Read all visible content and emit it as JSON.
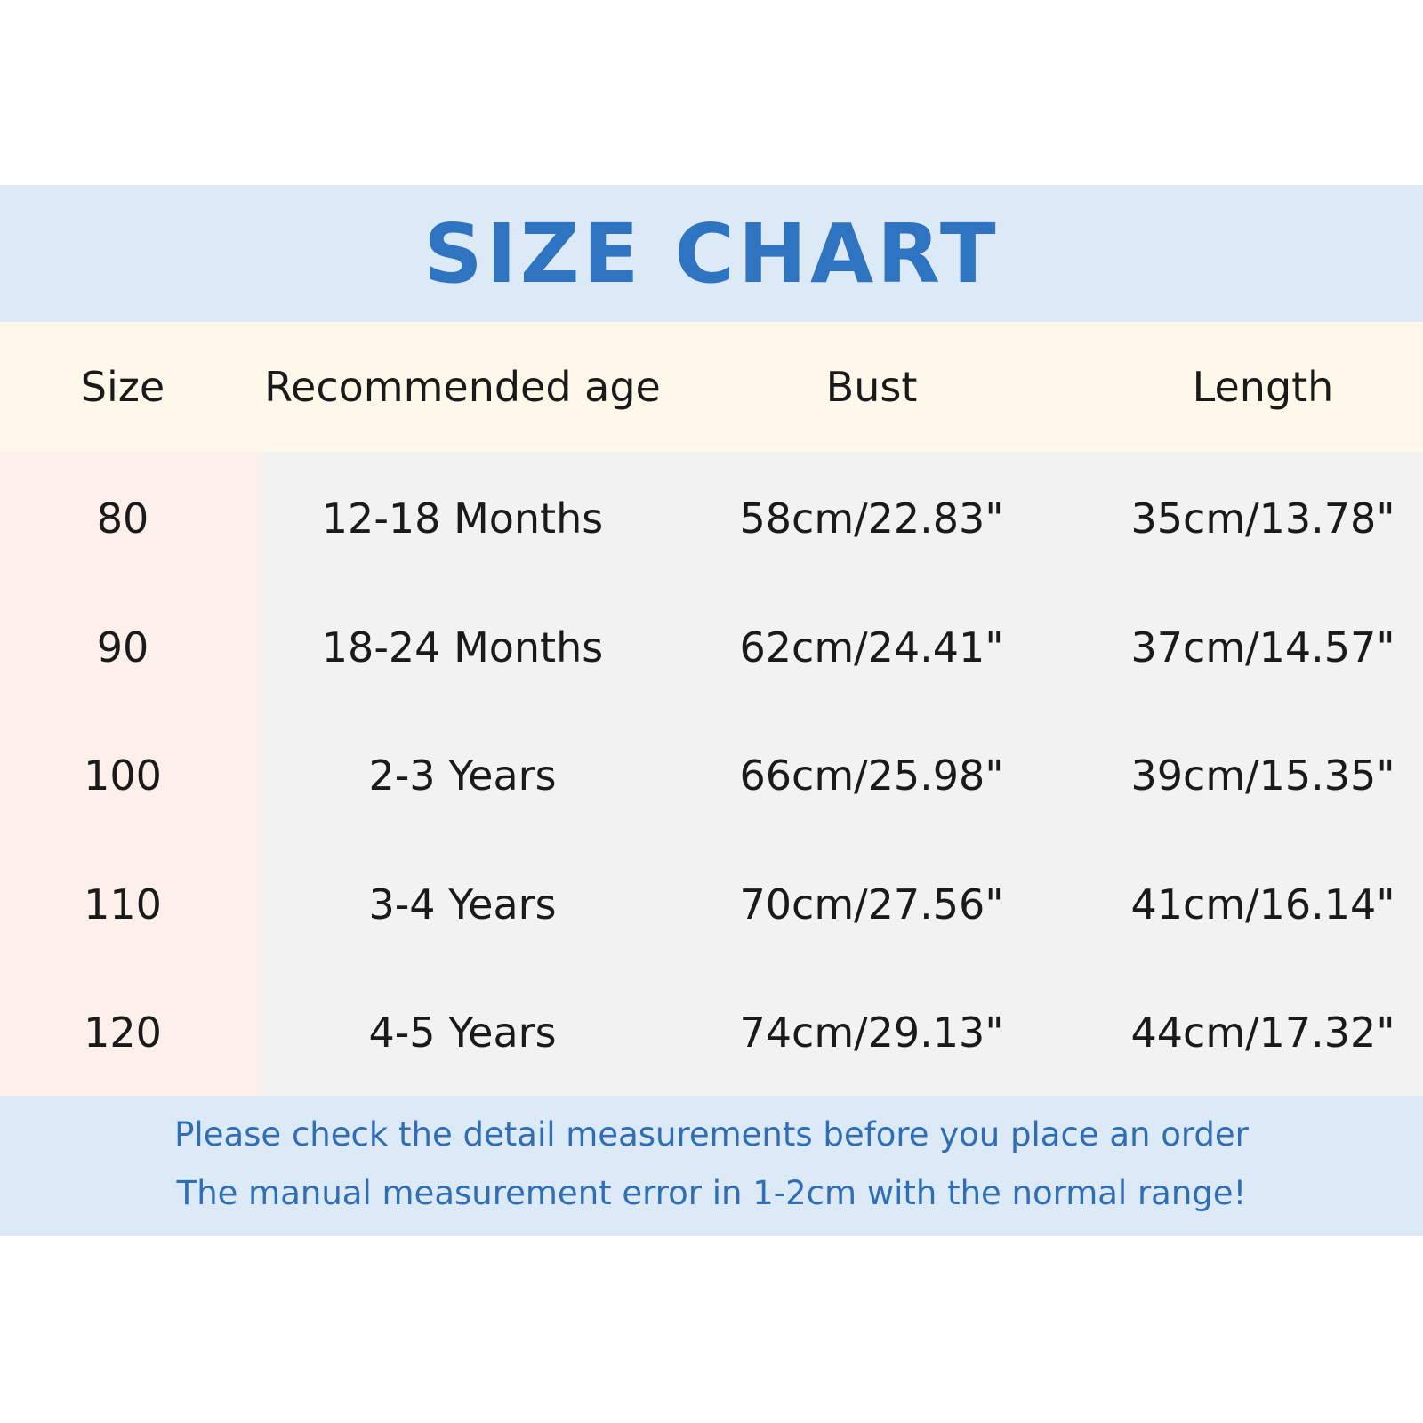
{
  "title": "SIZE CHART",
  "colors": {
    "title": "#2e74c0",
    "title_band": "#dce9f7",
    "header_band": "#fdf8ea",
    "size_column": "#fdf0ea",
    "body": "#f2f2f2",
    "footer_text": "#2f6db5"
  },
  "table": {
    "headers": [
      "Size",
      "Recommended age",
      "Bust",
      "Length"
    ],
    "rows": [
      [
        "80",
        "12-18 Months",
        "58cm/22.83\"",
        "35cm/13.78\""
      ],
      [
        "90",
        "18-24 Months",
        "62cm/24.41\"",
        "37cm/14.57\""
      ],
      [
        "100",
        "2-3 Years",
        "66cm/25.98\"",
        "39cm/15.35\""
      ],
      [
        "110",
        "3-4 Years",
        "70cm/27.56\"",
        "41cm/16.14\""
      ],
      [
        "120",
        "4-5 Years",
        "74cm/29.13\"",
        "44cm/17.32\""
      ]
    ]
  },
  "footer": {
    "line1": "Please check the detail measurements before you place an order",
    "line2": "The manual measurement error in 1-2cm with the normal range!"
  }
}
